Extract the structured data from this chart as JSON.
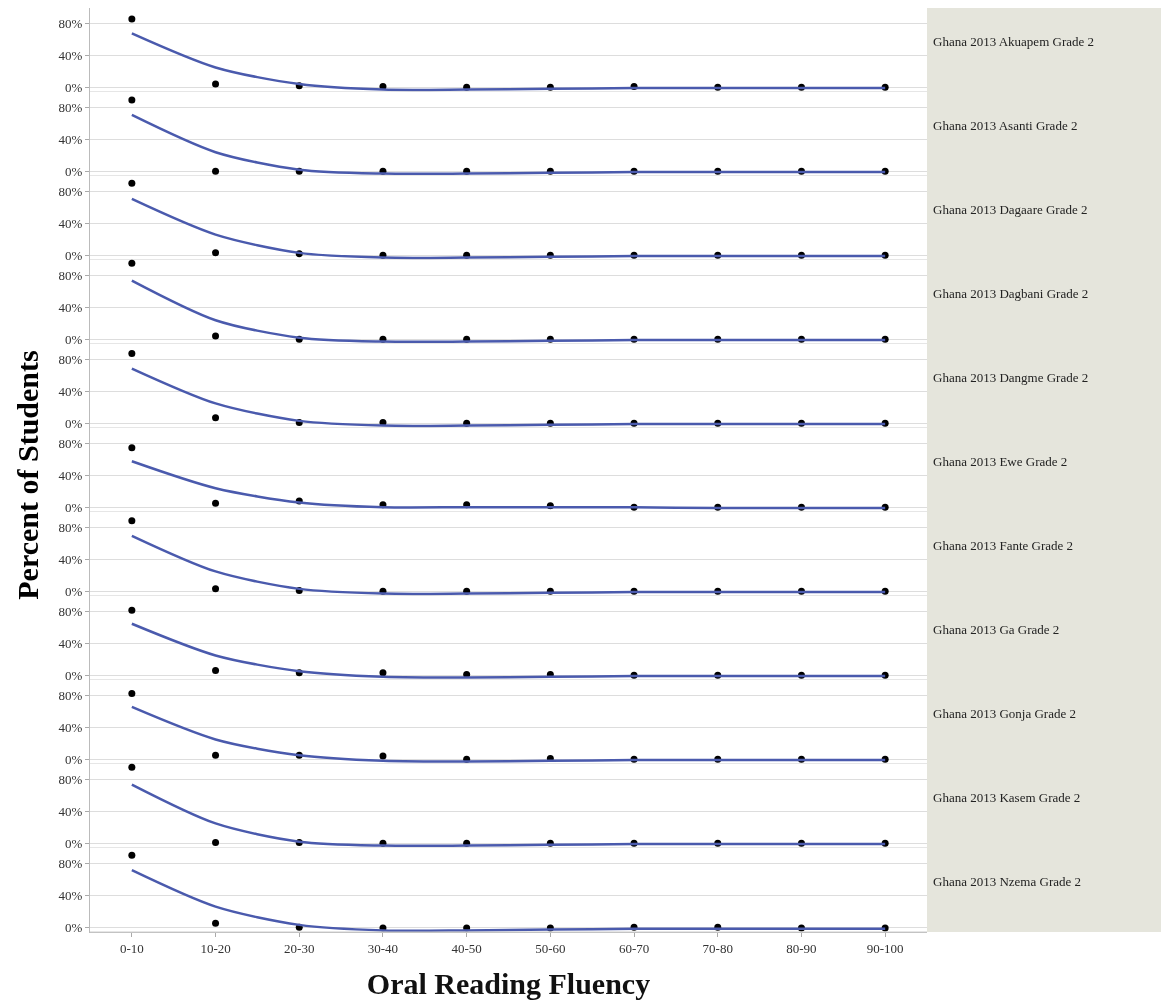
{
  "chart_data": [
    {
      "type": "scatter",
      "title": "Ghana 2013 Akuapem Grade 2",
      "categories": [
        null,
        null,
        null,
        null,
        null,
        null,
        null,
        null,
        null,
        null
      ],
      "ylim": [
        -6,
        100
      ],
      "yticks": [
        {
          "value": 0,
          "label": "0%"
        },
        {
          "value": 40,
          "label": "40%"
        },
        {
          "value": 80,
          "label": "80%"
        }
      ],
      "grid": "y",
      "tick_labels": "y",
      "series": [
        {
          "type": "scatter",
          "marker": "circle",
          "color": "#000000",
          "values": [
            86,
            4,
            2,
            1,
            0,
            0,
            1,
            0,
            0,
            0
          ]
        },
        {
          "type": "line",
          "line_style": "solid",
          "color": "#4a5aad",
          "values": [
            68,
            25,
            4,
            -3,
            -3,
            -2,
            -1,
            -1,
            -1,
            -1
          ]
        }
      ]
    },
    {
      "type": "scatter",
      "title": "Ghana 2013 Asanti Grade 2",
      "categories": [
        null,
        null,
        null,
        null,
        null,
        null,
        null,
        null,
        null,
        null
      ],
      "ylim": [
        -6,
        100
      ],
      "yticks": [
        {
          "value": 0,
          "label": "0%"
        },
        {
          "value": 40,
          "label": "40%"
        },
        {
          "value": 80,
          "label": "80%"
        }
      ],
      "grid": "y",
      "tick_labels": "y",
      "series": [
        {
          "type": "scatter",
          "marker": "circle",
          "color": "#000000",
          "values": [
            90,
            0,
            0,
            0,
            0,
            0,
            0,
            0,
            0,
            0
          ]
        },
        {
          "type": "line",
          "line_style": "solid",
          "color": "#4a5aad",
          "values": [
            71,
            24,
            2,
            -3,
            -3,
            -2,
            -1,
            -1,
            -1,
            -1
          ]
        }
      ]
    },
    {
      "type": "scatter",
      "title": "Ghana 2013 Dagaare Grade 2",
      "categories": [
        null,
        null,
        null,
        null,
        null,
        null,
        null,
        null,
        null,
        null
      ],
      "ylim": [
        -6,
        100
      ],
      "yticks": [
        {
          "value": 0,
          "label": "0%"
        },
        {
          "value": 40,
          "label": "40%"
        },
        {
          "value": 80,
          "label": "80%"
        }
      ],
      "grid": "y",
      "tick_labels": "y",
      "series": [
        {
          "type": "scatter",
          "marker": "circle",
          "color": "#000000",
          "values": [
            91,
            3,
            2,
            0,
            0,
            0,
            0,
            0,
            0,
            0
          ]
        },
        {
          "type": "line",
          "line_style": "solid",
          "color": "#4a5aad",
          "values": [
            71,
            26,
            3,
            -3,
            -3,
            -2,
            -1,
            -1,
            -1,
            -1
          ]
        }
      ]
    },
    {
      "type": "scatter",
      "title": "Ghana 2013 Dagbani Grade 2",
      "categories": [
        null,
        null,
        null,
        null,
        null,
        null,
        null,
        null,
        null,
        null
      ],
      "ylim": [
        -6,
        100
      ],
      "yticks": [
        {
          "value": 0,
          "label": "0%"
        },
        {
          "value": 40,
          "label": "40%"
        },
        {
          "value": 80,
          "label": "80%"
        }
      ],
      "grid": "y",
      "tick_labels": "y",
      "series": [
        {
          "type": "scatter",
          "marker": "circle",
          "color": "#000000",
          "values": [
            96,
            4,
            0,
            0,
            0,
            0,
            0,
            0,
            0,
            0
          ]
        },
        {
          "type": "line",
          "line_style": "solid",
          "color": "#4a5aad",
          "values": [
            74,
            24,
            2,
            -3,
            -3,
            -2,
            -1,
            -1,
            -1,
            -1
          ]
        }
      ]
    },
    {
      "type": "scatter",
      "title": "Ghana 2013 Dangme Grade 2",
      "categories": [
        null,
        null,
        null,
        null,
        null,
        null,
        null,
        null,
        null,
        null
      ],
      "ylim": [
        -6,
        100
      ],
      "yticks": [
        {
          "value": 0,
          "label": "0%"
        },
        {
          "value": 40,
          "label": "40%"
        },
        {
          "value": 80,
          "label": "80%"
        }
      ],
      "grid": "y",
      "tick_labels": "y",
      "series": [
        {
          "type": "scatter",
          "marker": "circle",
          "color": "#000000",
          "values": [
            88,
            7,
            1,
            1,
            0,
            0,
            0,
            0,
            0,
            0
          ]
        },
        {
          "type": "line",
          "line_style": "solid",
          "color": "#4a5aad",
          "values": [
            69,
            25,
            3,
            -3,
            -3,
            -2,
            -1,
            -1,
            -1,
            -1
          ]
        }
      ]
    },
    {
      "type": "scatter",
      "title": "Ghana 2013 Ewe Grade 2",
      "ylabel": "Percent of Students",
      "categories": [
        null,
        null,
        null,
        null,
        null,
        null,
        null,
        null,
        null,
        null
      ],
      "ylim": [
        -6,
        100
      ],
      "yticks": [
        {
          "value": 0,
          "label": "0%"
        },
        {
          "value": 40,
          "label": "40%"
        },
        {
          "value": 80,
          "label": "80%"
        }
      ],
      "grid": "y",
      "tick_labels": "y",
      "series": [
        {
          "type": "scatter",
          "marker": "circle",
          "color": "#000000",
          "values": [
            75,
            5,
            8,
            3,
            3,
            2,
            0,
            0,
            0,
            0
          ]
        },
        {
          "type": "line",
          "line_style": "solid",
          "color": "#4a5aad",
          "values": [
            58,
            24,
            6,
            0,
            0,
            0,
            0,
            -1,
            -1,
            -1
          ]
        }
      ]
    },
    {
      "type": "scatter",
      "title": "Ghana 2013 Fante Grade 2",
      "categories": [
        null,
        null,
        null,
        null,
        null,
        null,
        null,
        null,
        null,
        null
      ],
      "ylim": [
        -6,
        100
      ],
      "yticks": [
        {
          "value": 0,
          "label": "0%"
        },
        {
          "value": 40,
          "label": "40%"
        },
        {
          "value": 80,
          "label": "80%"
        }
      ],
      "grid": "y",
      "tick_labels": "y",
      "series": [
        {
          "type": "scatter",
          "marker": "circle",
          "color": "#000000",
          "values": [
            89,
            3,
            1,
            0,
            0,
            0,
            0,
            0,
            0,
            0
          ]
        },
        {
          "type": "line",
          "line_style": "solid",
          "color": "#4a5aad",
          "values": [
            70,
            25,
            3,
            -3,
            -3,
            -2,
            -1,
            -1,
            -1,
            -1
          ]
        }
      ]
    },
    {
      "type": "scatter",
      "title": "Ghana 2013 Ga Grade 2",
      "categories": [
        null,
        null,
        null,
        null,
        null,
        null,
        null,
        null,
        null,
        null
      ],
      "ylim": [
        -6,
        100
      ],
      "yticks": [
        {
          "value": 0,
          "label": "0%"
        },
        {
          "value": 40,
          "label": "40%"
        },
        {
          "value": 80,
          "label": "80%"
        }
      ],
      "grid": "y",
      "tick_labels": "y",
      "series": [
        {
          "type": "scatter",
          "marker": "circle",
          "color": "#000000",
          "values": [
            82,
            6,
            3,
            3,
            1,
            1,
            0,
            0,
            0,
            0
          ]
        },
        {
          "type": "line",
          "line_style": "solid",
          "color": "#4a5aad",
          "values": [
            65,
            25,
            5,
            -2,
            -3,
            -2,
            -1,
            -1,
            -1,
            -1
          ]
        }
      ]
    },
    {
      "type": "scatter",
      "title": "Ghana 2013 Gonja Grade 2",
      "categories": [
        null,
        null,
        null,
        null,
        null,
        null,
        null,
        null,
        null,
        null
      ],
      "ylim": [
        -6,
        100
      ],
      "yticks": [
        {
          "value": 0,
          "label": "0%"
        },
        {
          "value": 40,
          "label": "40%"
        },
        {
          "value": 80,
          "label": "80%"
        }
      ],
      "grid": "y",
      "tick_labels": "y",
      "series": [
        {
          "type": "scatter",
          "marker": "circle",
          "color": "#000000",
          "values": [
            83,
            5,
            5,
            4,
            0,
            1,
            0,
            0,
            0,
            0
          ]
        },
        {
          "type": "line",
          "line_style": "solid",
          "color": "#4a5aad",
          "values": [
            66,
            25,
            5,
            -2,
            -3,
            -2,
            -1,
            -1,
            -1,
            -1
          ]
        }
      ]
    },
    {
      "type": "scatter",
      "title": "Ghana 2013 Kasem Grade 2",
      "categories": [
        null,
        null,
        null,
        null,
        null,
        null,
        null,
        null,
        null,
        null
      ],
      "ylim": [
        -6,
        100
      ],
      "yticks": [
        {
          "value": 0,
          "label": "0%"
        },
        {
          "value": 40,
          "label": "40%"
        },
        {
          "value": 80,
          "label": "80%"
        }
      ],
      "grid": "y",
      "tick_labels": "y",
      "series": [
        {
          "type": "scatter",
          "marker": "circle",
          "color": "#000000",
          "values": [
            96,
            1,
            1,
            0,
            0,
            0,
            0,
            0,
            0,
            0
          ]
        },
        {
          "type": "line",
          "line_style": "solid",
          "color": "#4a5aad",
          "values": [
            74,
            25,
            2,
            -3,
            -3,
            -2,
            -1,
            -1,
            -1,
            -1
          ]
        }
      ]
    },
    {
      "type": "scatter",
      "title": "Ghana 2013 Nzema Grade 2",
      "xlabel": "Oral Reading Fluency",
      "categories": [
        "0-10",
        "10-20",
        "20-30",
        "30-40",
        "40-50",
        "50-60",
        "60-70",
        "70-80",
        "80-90",
        "90-100"
      ],
      "ylim": [
        -6,
        100
      ],
      "yticks": [
        {
          "value": 0,
          "label": "0%"
        },
        {
          "value": 40,
          "label": "40%"
        },
        {
          "value": 80,
          "label": "80%"
        }
      ],
      "grid": "y",
      "series": [
        {
          "type": "scatter",
          "marker": "circle",
          "color": "#000000",
          "values": [
            91,
            5,
            0,
            -1,
            -1,
            -1,
            0,
            0,
            -1,
            -1
          ]
        },
        {
          "type": "line",
          "line_style": "solid",
          "color": "#4a5aad",
          "values": [
            72,
            26,
            3,
            -4,
            -4,
            -3,
            -2,
            -2,
            -2,
            -2
          ]
        }
      ]
    }
  ]
}
